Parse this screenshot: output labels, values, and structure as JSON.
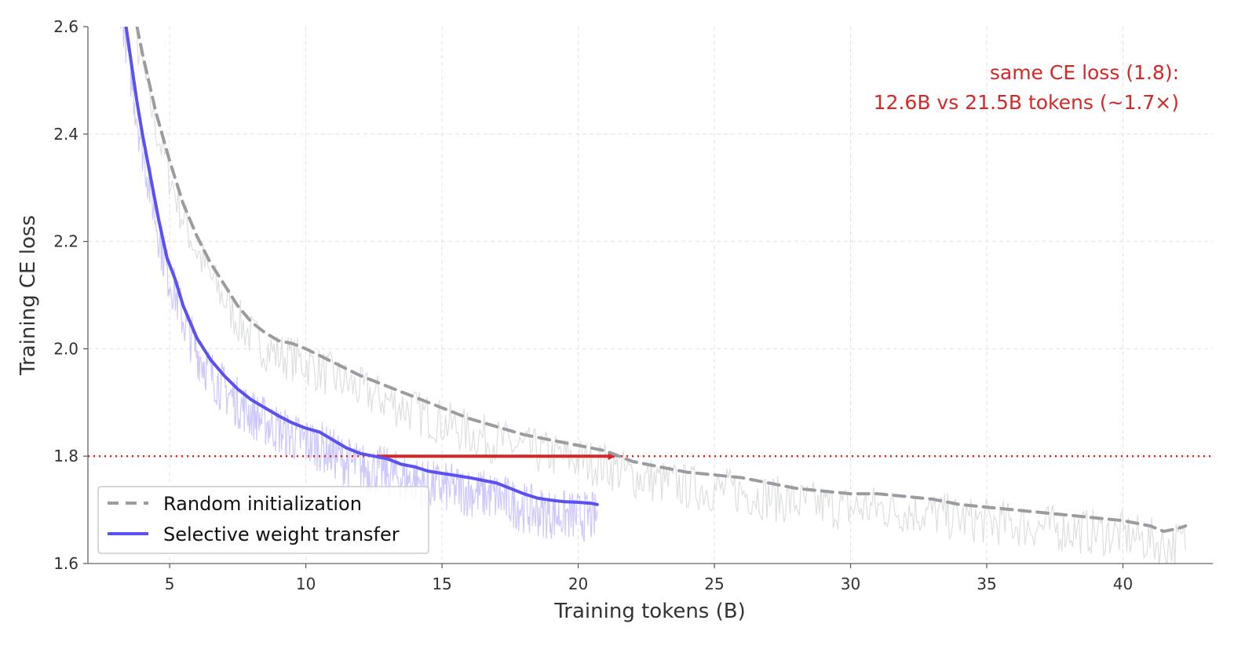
{
  "chart_data": {
    "type": "line",
    "title": "",
    "xlabel": "Training tokens (B)",
    "ylabel": "Training CE loss",
    "xlim": [
      2,
      43.3
    ],
    "ylim": [
      1.6,
      2.6
    ],
    "xticks": [
      5,
      10,
      15,
      20,
      25,
      30,
      35,
      40
    ],
    "yticks": [
      1.6,
      1.8,
      2.0,
      2.2,
      2.4,
      2.6
    ],
    "xtick_labels": [
      "5",
      "10",
      "15",
      "20",
      "25",
      "30",
      "35",
      "40"
    ],
    "ytick_labels": [
      "1.6",
      "1.8",
      "2.0",
      "2.2",
      "2.4",
      "2.6"
    ],
    "grid": true,
    "legend_position": "lower-left",
    "colors": {
      "random": "#9a9ca1",
      "selective": "#5b50f0",
      "reference": "#d62728",
      "raw_random": "#d9dcdc",
      "raw_selective": "#c9c3fb"
    },
    "series": [
      {
        "name": "Random initialization",
        "style": "dashed",
        "x": [
          3.8,
          4.0,
          4.5,
          5.0,
          5.5,
          6.0,
          6.5,
          7.0,
          7.5,
          8.0,
          8.5,
          9.0,
          9.5,
          10.0,
          11.0,
          12.0,
          13.0,
          14.0,
          15.0,
          16.0,
          17.0,
          18.0,
          19.0,
          20.0,
          21.0,
          22.0,
          23.0,
          24.0,
          25.0,
          26.0,
          27.0,
          28.0,
          29.0,
          30.0,
          31.0,
          32.0,
          33.0,
          34.0,
          35.0,
          36.0,
          37.0,
          38.0,
          39.0,
          40.0,
          41.0,
          41.5,
          42.0,
          42.3
        ],
        "y": [
          2.6,
          2.55,
          2.44,
          2.35,
          2.27,
          2.21,
          2.16,
          2.12,
          2.08,
          2.05,
          2.03,
          2.015,
          2.01,
          2.0,
          1.975,
          1.95,
          1.93,
          1.91,
          1.89,
          1.87,
          1.855,
          1.84,
          1.83,
          1.82,
          1.81,
          1.79,
          1.78,
          1.77,
          1.765,
          1.76,
          1.75,
          1.74,
          1.735,
          1.73,
          1.73,
          1.725,
          1.72,
          1.71,
          1.705,
          1.7,
          1.695,
          1.69,
          1.685,
          1.68,
          1.67,
          1.66,
          1.665,
          1.67
        ]
      },
      {
        "name": "Selective weight transfer",
        "style": "solid",
        "x": [
          3.4,
          3.6,
          3.8,
          4.0,
          4.3,
          4.6,
          4.9,
          5.2,
          5.5,
          6.0,
          6.5,
          7.0,
          7.5,
          8.0,
          8.5,
          9.0,
          9.5,
          10.0,
          10.5,
          11.0,
          11.5,
          12.0,
          12.5,
          13.0,
          13.5,
          14.0,
          14.5,
          15.0,
          15.5,
          16.0,
          16.5,
          17.0,
          17.5,
          18.0,
          18.5,
          19.0,
          19.5,
          20.0,
          20.5,
          20.7
        ],
        "y": [
          2.6,
          2.53,
          2.46,
          2.4,
          2.32,
          2.24,
          2.17,
          2.13,
          2.08,
          2.02,
          1.98,
          1.95,
          1.925,
          1.905,
          1.89,
          1.875,
          1.862,
          1.852,
          1.845,
          1.83,
          1.815,
          1.805,
          1.8,
          1.795,
          1.785,
          1.78,
          1.772,
          1.768,
          1.764,
          1.76,
          1.755,
          1.75,
          1.74,
          1.73,
          1.722,
          1.718,
          1.715,
          1.714,
          1.712,
          1.71
        ]
      }
    ],
    "reference_line": {
      "y": 1.8,
      "style": "dotted"
    },
    "arrow": {
      "x_start": 12.6,
      "x_end": 21.5,
      "y": 1.8
    },
    "annotation": {
      "line1": "same CE loss (1.8):",
      "line2": "12.6B vs 21.5B tokens (~1.7×)",
      "position": "top-right"
    }
  }
}
